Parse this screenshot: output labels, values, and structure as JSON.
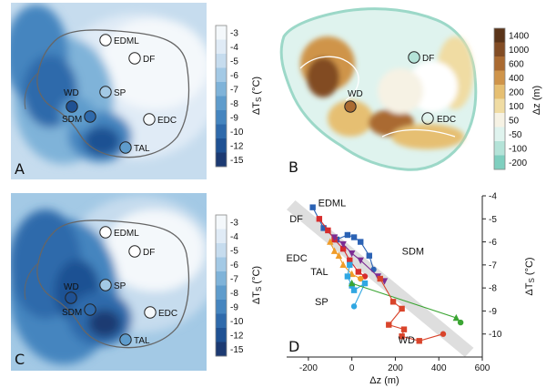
{
  "colors": {
    "temp_scale": [
      "#1c3a72",
      "#1f5193",
      "#2f6aab",
      "#4585bf",
      "#5f9ccc",
      "#7fb3d9",
      "#a3c9e5",
      "#c6dcee",
      "#e0ebf6",
      "#f4f8fb"
    ],
    "elev_scale": [
      "#7fcfbf",
      "#b4e3d8",
      "#dff3ee",
      "#f6f2e4",
      "#f0dca3",
      "#e6bf72",
      "#cf944a",
      "#aa6a31",
      "#824c24",
      "#5a3419"
    ],
    "sites": {
      "EDML": "#2b62b4",
      "DF": "#d62d2d",
      "EDC": "#f09c28",
      "TAL": "#7d2d93",
      "SP": "#30a7e2",
      "SDM": "#3ba533",
      "WD": "#d9442b"
    }
  },
  "panels": {
    "A": {
      "letter": "A",
      "sites": [
        {
          "name": "EDML",
          "label": "EDML"
        },
        {
          "name": "DF",
          "label": "DF"
        },
        {
          "name": "WD",
          "label": "WD"
        },
        {
          "name": "SP",
          "label": "SP"
        },
        {
          "name": "SDM",
          "label": "SDM"
        },
        {
          "name": "EDC",
          "label": "EDC"
        },
        {
          "name": "TAL",
          "label": "TAL"
        }
      ],
      "colorbar": {
        "ticks": [
          "-3",
          "-4",
          "-5",
          "-6",
          "-7",
          "-8",
          "-9",
          "-10",
          "-12",
          "-15"
        ],
        "label": "ΔT",
        "label_sub": "S",
        "unit": "(°C)"
      }
    },
    "B": {
      "letter": "B",
      "sites": [
        {
          "name": "DF",
          "label": "DF"
        },
        {
          "name": "WD",
          "label": "WD"
        },
        {
          "name": "EDC",
          "label": "EDC"
        }
      ],
      "colorbar": {
        "ticks": [
          "1400",
          "1000",
          "600",
          "400",
          "200",
          "100",
          "50",
          "-50",
          "-100",
          "-200"
        ],
        "label": "Δz (m)"
      }
    },
    "C": {
      "letter": "C",
      "sites": [
        {
          "name": "EDML",
          "label": "EDML"
        },
        {
          "name": "DF",
          "label": "DF"
        },
        {
          "name": "WD",
          "label": "WD"
        },
        {
          "name": "SP",
          "label": "SP"
        },
        {
          "name": "SDM",
          "label": "SDM"
        },
        {
          "name": "EDC",
          "label": "EDC"
        },
        {
          "name": "TAL",
          "label": "TAL"
        }
      ],
      "colorbar": {
        "ticks": [
          "-3",
          "-4",
          "-5",
          "-6",
          "-7",
          "-8",
          "-9",
          "-10",
          "-12",
          "-15"
        ],
        "label": "ΔT",
        "label_sub": "S",
        "unit": "(°C)"
      }
    },
    "D": {
      "letter": "D"
    }
  },
  "chart_data": {
    "type": "line",
    "xlabel": "Δz (m)",
    "ylabel": "ΔT",
    "ylabel_sub": "S",
    "ylabel_unit": "(°C)",
    "xlim": [
      -300,
      600
    ],
    "ylim": [
      -11,
      -4
    ],
    "xticks": [
      -200,
      0,
      200,
      400,
      600
    ],
    "yticks": [
      -4,
      -5,
      -6,
      -7,
      -8,
      -9,
      -10
    ],
    "series": [
      {
        "name": "EDML",
        "label": "EDML",
        "color": "#2b62b4",
        "marker": "square",
        "points": [
          [
            -180,
            -4.5
          ],
          [
            -130,
            -5.4
          ],
          [
            -70,
            -5.9
          ],
          [
            -20,
            -5.7
          ],
          [
            10,
            -5.8
          ],
          [
            40,
            -6.0
          ],
          [
            80,
            -6.6
          ],
          [
            100,
            -7.2
          ]
        ]
      },
      {
        "name": "DF",
        "label": "DF",
        "color": "#d62d2d",
        "marker": "square",
        "points": [
          [
            -150,
            -5.0
          ],
          [
            -110,
            -5.5
          ],
          [
            -80,
            -5.9
          ],
          [
            -40,
            -6.3
          ],
          [
            -10,
            -6.8
          ],
          [
            30,
            -7.3
          ],
          [
            60,
            -7.5
          ]
        ]
      },
      {
        "name": "EDC",
        "label": "EDC",
        "color": "#f09c28",
        "marker": "triangle",
        "points": [
          [
            -100,
            -6.0
          ],
          [
            -80,
            -6.4
          ],
          [
            -60,
            -6.6
          ],
          [
            -40,
            -7.0
          ],
          [
            0,
            -7.4
          ],
          [
            40,
            -7.6
          ]
        ]
      },
      {
        "name": "TAL",
        "label": "TAL",
        "color": "#7d2d93",
        "marker": "triangle-down",
        "points": [
          [
            -80,
            -5.8
          ],
          [
            -40,
            -6.1
          ],
          [
            0,
            -6.5
          ],
          [
            40,
            -6.8
          ],
          [
            120,
            -7.5
          ],
          [
            150,
            -7.7
          ]
        ]
      },
      {
        "name": "SP",
        "label": "SP",
        "color": "#30a7e2",
        "marker": "square",
        "points": [
          [
            -10,
            -7.0
          ],
          [
            -20,
            -7.5
          ],
          [
            0,
            -7.9
          ],
          [
            10,
            -8.1
          ],
          [
            60,
            -7.8
          ],
          [
            10,
            -8.8
          ]
        ]
      },
      {
        "name": "SDM",
        "label": "SDM",
        "color": "#3ba533",
        "marker": "triangle",
        "points": [
          [
            0,
            -7.8
          ],
          [
            480,
            -9.3
          ],
          [
            500,
            -9.5
          ]
        ]
      },
      {
        "name": "WD",
        "label": "WD",
        "color": "#d9442b",
        "marker": "square",
        "points": [
          [
            130,
            -7.6
          ],
          [
            190,
            -8.6
          ],
          [
            230,
            -8.9
          ],
          [
            170,
            -9.6
          ],
          [
            240,
            -9.8
          ],
          [
            230,
            -10.1
          ],
          [
            310,
            -10.3
          ],
          [
            420,
            -10.0
          ]
        ]
      }
    ]
  }
}
